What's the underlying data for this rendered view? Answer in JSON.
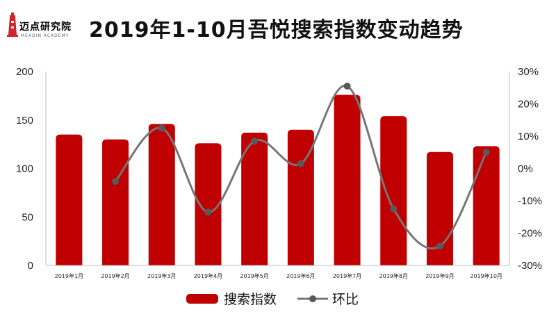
{
  "header": {
    "logo_text": "迈点研究院",
    "logo_sub": "MEADIN ACADEMY",
    "title": "2019年1-10月吾悦搜索指数变动趋势"
  },
  "colors": {
    "bar": "#c00000",
    "line": "#767676",
    "logo_red": "#d2232a"
  },
  "chart_data": {
    "type": "bar",
    "title": "2019年1-10月吾悦搜索指数变动趋势",
    "categories": [
      "2019年1月",
      "2019年2月",
      "2019年3月",
      "2019年4月",
      "2019年5月",
      "2019年6月",
      "2019年7月",
      "2019年8月",
      "2019年9月",
      "2019年10月"
    ],
    "series": [
      {
        "name": "搜索指数",
        "type": "bar",
        "axis": "left",
        "values": [
          135,
          130,
          146,
          126,
          137,
          140,
          176,
          154,
          117,
          123
        ]
      },
      {
        "name": "环比",
        "type": "line",
        "axis": "right",
        "unit": "%",
        "values": [
          null,
          -4,
          12.5,
          -13.5,
          8.5,
          1.5,
          25.5,
          -12.5,
          -24,
          5
        ]
      }
    ],
    "y_left": {
      "min": 0,
      "max": 200,
      "ticks": [
        0,
        50,
        100,
        150,
        200
      ]
    },
    "y_right": {
      "min": -30,
      "max": 30,
      "ticks": [
        "-30%",
        "-20%",
        "-10%",
        "0%",
        "10%",
        "20%",
        "30%"
      ]
    },
    "legend_position": "bottom",
    "grid": false
  }
}
